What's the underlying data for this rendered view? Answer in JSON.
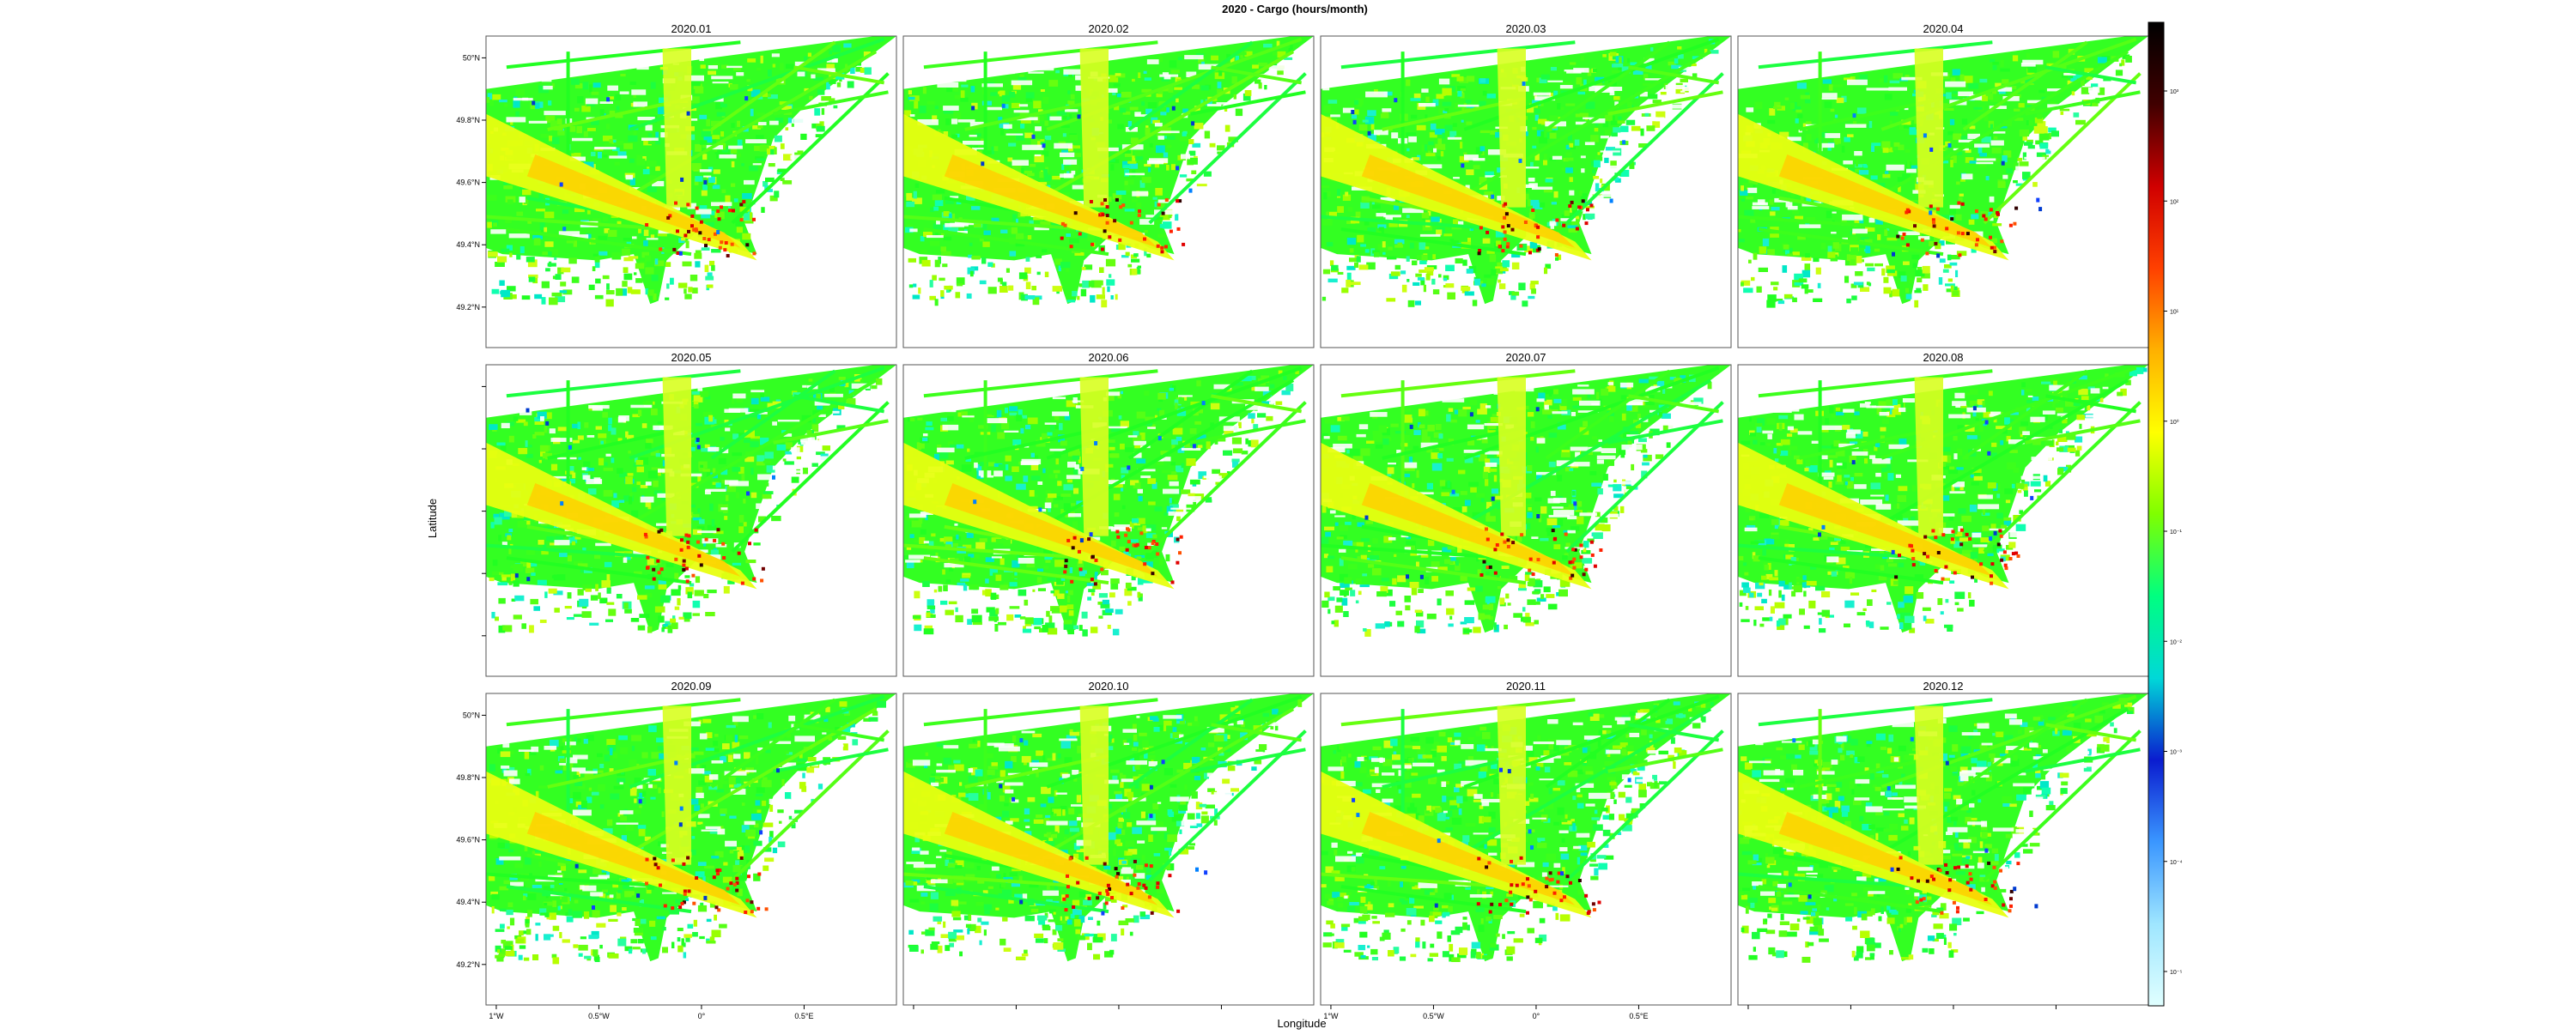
{
  "chart_data": {
    "type": "heatmap",
    "title": "2020 - Cargo (hours/month)",
    "xlabel": "Longitude",
    "ylabel": "Latitude",
    "panels": [
      "2020.01",
      "2020.02",
      "2020.03",
      "2020.04",
      "2020.05",
      "2020.06",
      "2020.07",
      "2020.08",
      "2020.09",
      "2020.10",
      "2020.11",
      "2020.12"
    ],
    "x_ticks": [
      "1°W",
      "0.5°W",
      "0°",
      "0.5°E"
    ],
    "y_ticks": [
      "50°N",
      "49.8°N",
      "49.6°N",
      "49.4°N",
      "49.2°N"
    ],
    "xlim": [
      -1.05,
      0.95
    ],
    "ylim": [
      49.07,
      50.07
    ],
    "colorbar": {
      "scale": "log",
      "ticks": [
        "10³",
        "10²",
        "10¹",
        "10⁰",
        "10⁻¹",
        "10⁻²",
        "10⁻³",
        "10⁻⁴",
        "10⁻⁵"
      ],
      "colors": [
        "#e0ffff",
        "#9fe6ff",
        "#3a96ff",
        "#0a1ccf",
        "#00d8d8",
        "#00ff80",
        "#7fff00",
        "#ffff00",
        "#ffb000",
        "#ff4000",
        "#d00000",
        "#400000",
        "#000000"
      ]
    }
  }
}
